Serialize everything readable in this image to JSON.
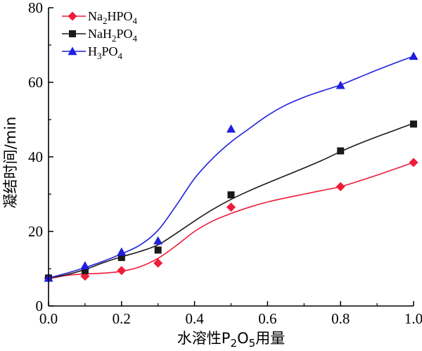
{
  "chart_data": {
    "type": "scatter",
    "xlabel": {
      "parts": [
        {
          "t": "水溶性P",
          "sub": false
        },
        {
          "t": "2",
          "sub": true
        },
        {
          "t": "O",
          "sub": false
        },
        {
          "t": "5",
          "sub": true
        },
        {
          "t": "用量",
          "sub": false
        }
      ]
    },
    "ylabel": "凝结时间/min",
    "xlim": [
      0,
      1.0
    ],
    "ylim": [
      0,
      80
    ],
    "xticks": [
      "0.0",
      "0.2",
      "0.4",
      "0.6",
      "0.8",
      "1.0"
    ],
    "xtick_values": [
      0,
      0.2,
      0.4,
      0.6,
      0.8,
      1.0
    ],
    "yticks": [
      "0",
      "20",
      "40",
      "60",
      "80"
    ],
    "ytick_values": [
      0,
      20,
      40,
      60,
      80
    ],
    "grid": false,
    "legend_position": "top-left",
    "series": [
      {
        "name": "Na2HPO4",
        "name_parts": [
          {
            "t": "Na",
            "sub": false
          },
          {
            "t": "2",
            "sub": true
          },
          {
            "t": "HPO",
            "sub": false
          },
          {
            "t": "4",
            "sub": true
          }
        ],
        "color": "#ee1c3a",
        "marker": "diamond",
        "x": [
          0,
          0.1,
          0.2,
          0.3,
          0.5,
          0.8,
          1.0
        ],
        "y": [
          7.5,
          8,
          9.5,
          11.5,
          26.5,
          32,
          38.5
        ],
        "fit_x": [
          0,
          0.05,
          0.1,
          0.15,
          0.2,
          0.25,
          0.3,
          0.35,
          0.4,
          0.45,
          0.5,
          0.55,
          0.6,
          0.65,
          0.7,
          0.75,
          0.8,
          0.85,
          0.9,
          0.95,
          1.0
        ],
        "fit_y": [
          7.3,
          8.2,
          8.6,
          8.8,
          9.3,
          10.5,
          12.8,
          16.2,
          20.0,
          22.8,
          24.8,
          26.5,
          27.9,
          29.0,
          30.0,
          31.0,
          32.0,
          33.5,
          35.1,
          36.8,
          38.5
        ]
      },
      {
        "name": "NaH2PO4",
        "name_parts": [
          {
            "t": "NaH",
            "sub": false
          },
          {
            "t": "2",
            "sub": true
          },
          {
            "t": "PO",
            "sub": false
          },
          {
            "t": "4",
            "sub": true
          }
        ],
        "color": "#1a1a1a",
        "marker": "square",
        "x": [
          0,
          0.1,
          0.2,
          0.3,
          0.5,
          0.8,
          1.0
        ],
        "y": [
          7.5,
          9.5,
          13,
          15,
          29.8,
          41.6,
          48.8
        ],
        "fit_x": [
          0,
          0.05,
          0.1,
          0.15,
          0.2,
          0.25,
          0.3,
          0.35,
          0.4,
          0.45,
          0.5,
          0.55,
          0.6,
          0.65,
          0.7,
          0.75,
          0.8,
          0.85,
          0.9,
          0.95,
          1.0
        ],
        "fit_y": [
          7.5,
          8.4,
          9.8,
          11.6,
          13.2,
          14.6,
          16.4,
          19.5,
          22.8,
          25.9,
          28.6,
          30.9,
          33.0,
          35.0,
          37.0,
          39.1,
          41.4,
          43.5,
          45.4,
          47.2,
          49.0
        ]
      },
      {
        "name": "H3PO4",
        "name_parts": [
          {
            "t": "H",
            "sub": false
          },
          {
            "t": "3",
            "sub": true
          },
          {
            "t": "PO",
            "sub": false
          },
          {
            "t": "4",
            "sub": true
          }
        ],
        "color": "#1f1fe0",
        "marker": "triangle",
        "x": [
          0,
          0.1,
          0.2,
          0.3,
          0.5,
          0.8,
          1.0
        ],
        "y": [
          7.5,
          10.8,
          14.5,
          17.5,
          47.5,
          59.2,
          67
        ],
        "fit_x": [
          0,
          0.05,
          0.1,
          0.15,
          0.2,
          0.25,
          0.3,
          0.35,
          0.4,
          0.45,
          0.5,
          0.55,
          0.6,
          0.65,
          0.7,
          0.75,
          0.8,
          0.85,
          0.9,
          0.95,
          1.0
        ],
        "fit_y": [
          7.5,
          8.8,
          10.3,
          12.0,
          14.0,
          16.3,
          20.3,
          27.0,
          34.2,
          39.6,
          44.0,
          47.6,
          51.1,
          53.9,
          56.0,
          57.7,
          59.3,
          61.3,
          63.3,
          65.2,
          67.0
        ]
      }
    ]
  }
}
